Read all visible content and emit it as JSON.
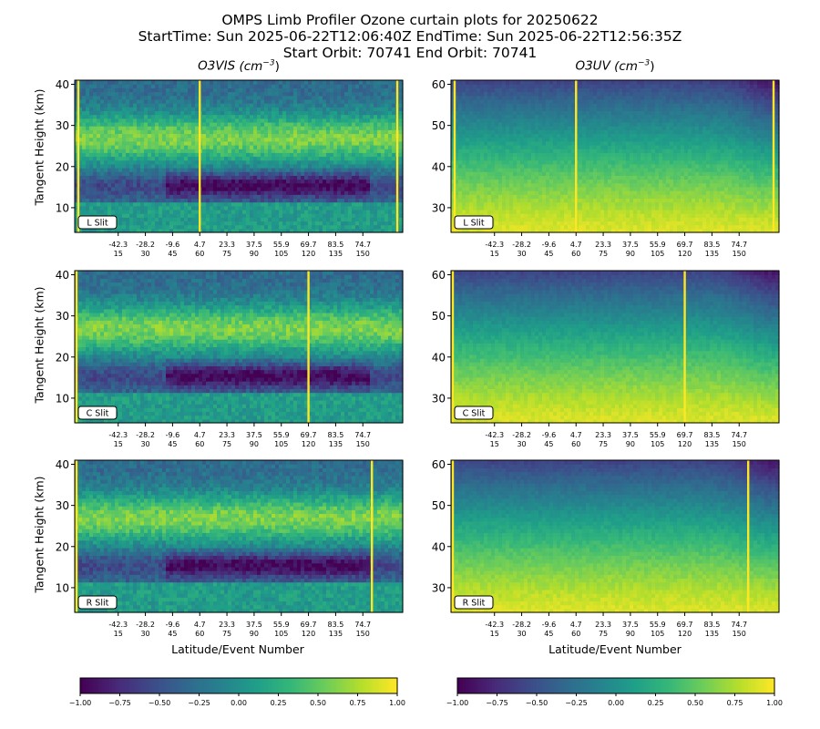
{
  "title": {
    "line1": "OMPS Limb Profiler Ozone curtain plots for 20250622",
    "line2": "StartTime: Sun 2025-06-22T12:06:40Z  EndTime: Sun 2025-06-22T12:56:35Z",
    "line3": "Start Orbit: 70741 End Orbit: 70741"
  },
  "columns": [
    {
      "name": "O3VIS",
      "unit_text": "(cm",
      "unit_exp": "−3",
      "unit_close": ")"
    },
    {
      "name": "O3UV",
      "unit_text": "(cm",
      "unit_exp": "−3",
      "unit_close": ")"
    }
  ],
  "ylabel": "Tangent Height (km)",
  "xlabel": "Latitude/Event Number",
  "colorbar": {
    "colormap": "viridis",
    "ticks": [
      "−1.00",
      "−0.75",
      "−0.50",
      "−0.25",
      "0.00",
      "0.25",
      "0.50",
      "0.75",
      "1.00"
    ]
  },
  "chart_data": [
    {
      "type": "heatmap",
      "variable": "O3VIS",
      "slit": "L Slit",
      "ylim": [
        4,
        41
      ],
      "yticks": [
        10,
        20,
        30,
        40
      ],
      "xticks_lat": [
        "-42.3",
        "-28.2",
        "-9.6",
        "4.7",
        "23.3",
        "37.5",
        "55.9",
        "69.7",
        "83.5",
        "74.7"
      ],
      "xticks_event": [
        "15",
        "30",
        "45",
        "60",
        "75",
        "90",
        "105",
        "120",
        "135",
        "150"
      ],
      "xlim_event": [
        -9,
        172
      ],
      "bright_event_columns": [
        -7,
        60,
        169
      ],
      "vmin": -1,
      "vmax": 1
    },
    {
      "type": "heatmap",
      "variable": "O3UV",
      "slit": "L Slit",
      "ylim": [
        24,
        61
      ],
      "yticks": [
        30,
        40,
        50,
        60
      ],
      "xticks_lat": [
        "-42.3",
        "-28.2",
        "-9.6",
        "4.7",
        "23.3",
        "37.5",
        "55.9",
        "69.7",
        "83.5",
        "74.7"
      ],
      "xticks_event": [
        "15",
        "30",
        "45",
        "60",
        "75",
        "90",
        "105",
        "120",
        "135",
        "150"
      ],
      "xlim_event": [
        -9,
        172
      ],
      "bright_event_columns": [
        -7,
        60,
        169
      ],
      "vmin": -1,
      "vmax": 1
    },
    {
      "type": "heatmap",
      "variable": "O3VIS",
      "slit": "C Slit",
      "ylim": [
        4,
        41
      ],
      "yticks": [
        10,
        20,
        30,
        40
      ],
      "xticks_lat": [
        "-42.3",
        "-28.2",
        "-9.6",
        "4.7",
        "23.3",
        "37.5",
        "55.9",
        "69.7",
        "83.5",
        "74.7"
      ],
      "xticks_event": [
        "15",
        "30",
        "45",
        "60",
        "75",
        "90",
        "105",
        "120",
        "135",
        "150"
      ],
      "xlim_event": [
        -9,
        172
      ],
      "bright_event_columns": [
        -8,
        120
      ],
      "vmin": -1,
      "vmax": 1
    },
    {
      "type": "heatmap",
      "variable": "O3UV",
      "slit": "C Slit",
      "ylim": [
        24,
        61
      ],
      "yticks": [
        30,
        40,
        50,
        60
      ],
      "xticks_lat": [
        "-42.3",
        "-28.2",
        "-9.6",
        "4.7",
        "23.3",
        "37.5",
        "55.9",
        "69.7",
        "83.5",
        "74.7"
      ],
      "xticks_event": [
        "15",
        "30",
        "45",
        "60",
        "75",
        "90",
        "105",
        "120",
        "135",
        "150"
      ],
      "xlim_event": [
        -9,
        172
      ],
      "bright_event_columns": [
        -8,
        120
      ],
      "vmin": -1,
      "vmax": 1
    },
    {
      "type": "heatmap",
      "variable": "O3VIS",
      "slit": "R Slit",
      "ylim": [
        4,
        41
      ],
      "yticks": [
        10,
        20,
        30,
        40
      ],
      "xticks_lat": [
        "-42.3",
        "-28.2",
        "-9.6",
        "4.7",
        "23.3",
        "37.5",
        "55.9",
        "69.7",
        "83.5",
        "74.7"
      ],
      "xticks_event": [
        "15",
        "30",
        "45",
        "60",
        "75",
        "90",
        "105",
        "120",
        "135",
        "150"
      ],
      "xlim_event": [
        -9,
        172
      ],
      "bright_event_columns": [
        -8,
        155
      ],
      "vmin": -1,
      "vmax": 1
    },
    {
      "type": "heatmap",
      "variable": "O3UV",
      "slit": "R Slit",
      "ylim": [
        24,
        61
      ],
      "yticks": [
        30,
        40,
        50,
        60
      ],
      "xticks_lat": [
        "-42.3",
        "-28.2",
        "-9.6",
        "4.7",
        "23.3",
        "37.5",
        "55.9",
        "69.7",
        "83.5",
        "74.7"
      ],
      "xticks_event": [
        "15",
        "30",
        "45",
        "60",
        "75",
        "90",
        "105",
        "120",
        "135",
        "150"
      ],
      "xlim_event": [
        -9,
        172
      ],
      "bright_event_columns": [
        -8,
        155
      ],
      "vmin": -1,
      "vmax": 1
    }
  ]
}
